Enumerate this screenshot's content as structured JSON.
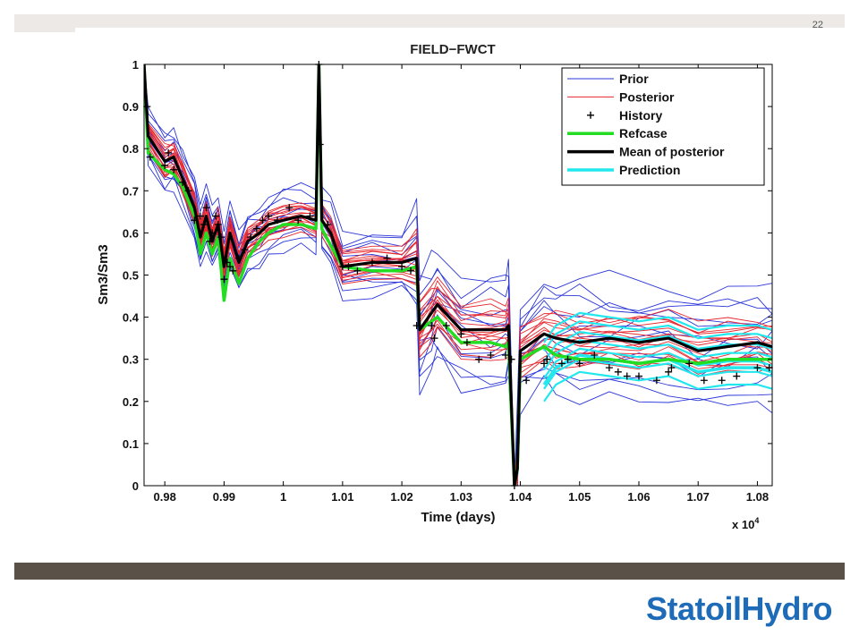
{
  "slide": {
    "page_number": "22",
    "logo_text": "StatoilHydro"
  },
  "colors": {
    "prior": "#2a35d8",
    "posterior": "#e8262e",
    "history": "#000000",
    "refcase": "#22dd22",
    "mean": "#000000",
    "prediction": "#22e8ee"
  },
  "chart_data": {
    "type": "line",
    "title": "FIELD−FWCT",
    "xlabel": "Time (days)",
    "ylabel": "Sm3/Sm3",
    "x_multiplier_label": "x 10",
    "x_multiplier_exp": "4",
    "xlim": [
      9765,
      10825
    ],
    "ylim": [
      0,
      1
    ],
    "xticks": [
      9800,
      9900,
      10000,
      10100,
      10200,
      10300,
      10400,
      10500,
      10600,
      10700,
      10800
    ],
    "xtick_labels": [
      "0.98",
      "0.99",
      "1",
      "1.01",
      "1.02",
      "1.03",
      "1.04",
      "1.05",
      "1.06",
      "1.07",
      "1.08"
    ],
    "yticks": [
      0,
      0.1,
      0.2,
      0.3,
      0.4,
      0.5,
      0.6,
      0.7,
      0.8,
      0.9,
      1
    ],
    "ytick_labels": [
      "0",
      "0.1",
      "0.2",
      "0.3",
      "0.4",
      "0.5",
      "0.6",
      "0.7",
      "0.8",
      "0.9",
      "1"
    ],
    "legend_position": "top-right",
    "legend": [
      "Prior",
      "Posterior",
      "History",
      "Refcase",
      "Mean of posterior",
      "Prediction"
    ],
    "grid": false,
    "base_x": [
      9765,
      9772,
      9800,
      9815,
      9830,
      9850,
      9860,
      9870,
      9880,
      9890,
      9900,
      9910,
      9925,
      9940,
      9960,
      9975,
      10000,
      10030,
      10055,
      10060,
      10065,
      10080,
      10100,
      10150,
      10200,
      10225,
      10230,
      10250,
      10260,
      10300,
      10350,
      10375,
      10380,
      10390,
      10395,
      10400,
      10440,
      10460,
      10500,
      10550,
      10600,
      10650,
      10700,
      10750,
      10800,
      10825
    ],
    "series": [
      {
        "name": "Mean of posterior",
        "style": "mean",
        "x": [
          9765,
          9772,
          9800,
          9815,
          9830,
          9850,
          9860,
          9870,
          9880,
          9890,
          9900,
          9910,
          9925,
          9940,
          9960,
          9975,
          10000,
          10030,
          10055,
          10060,
          10065,
          10080,
          10100,
          10150,
          10200,
          10225,
          10230,
          10250,
          10260,
          10300,
          10350,
          10375,
          10380,
          10390,
          10395,
          10400,
          10440,
          10460,
          10500,
          10550,
          10600,
          10650,
          10700,
          10750,
          10800,
          10825
        ],
        "y": [
          1.0,
          0.83,
          0.77,
          0.78,
          0.73,
          0.66,
          0.59,
          0.64,
          0.58,
          0.62,
          0.52,
          0.6,
          0.53,
          0.58,
          0.6,
          0.62,
          0.63,
          0.64,
          0.63,
          1.0,
          0.63,
          0.6,
          0.52,
          0.53,
          0.53,
          0.54,
          0.37,
          0.41,
          0.43,
          0.37,
          0.37,
          0.37,
          0.38,
          0.0,
          0.04,
          0.32,
          0.36,
          0.35,
          0.34,
          0.35,
          0.34,
          0.35,
          0.32,
          0.33,
          0.34,
          0.33
        ]
      },
      {
        "name": "Refcase",
        "style": "refcase",
        "x": [
          9765,
          9772,
          9800,
          9815,
          9830,
          9850,
          9860,
          9870,
          9880,
          9890,
          9900,
          9910,
          9925,
          9940,
          9960,
          9975,
          10000,
          10030,
          10055,
          10060,
          10065,
          10080,
          10100,
          10150,
          10200,
          10225,
          10230,
          10250,
          10260,
          10300,
          10350,
          10375,
          10380,
          10390,
          10395,
          10400,
          10440,
          10460,
          10500,
          10550,
          10600,
          10650,
          10700,
          10750,
          10800,
          10825
        ],
        "y": [
          1.0,
          0.79,
          0.75,
          0.74,
          0.71,
          0.64,
          0.55,
          0.6,
          0.55,
          0.59,
          0.44,
          0.54,
          0.48,
          0.54,
          0.58,
          0.6,
          0.62,
          0.62,
          0.61,
          1.0,
          0.61,
          0.57,
          0.52,
          0.51,
          0.51,
          0.52,
          0.37,
          0.39,
          0.4,
          0.34,
          0.34,
          0.33,
          0.34,
          0.0,
          0.04,
          0.3,
          0.33,
          0.31,
          0.3,
          0.3,
          0.29,
          0.3,
          0.29,
          0.3,
          0.3,
          0.3
        ]
      },
      {
        "name": "Prediction",
        "style": "prediction",
        "x": [
          10440,
          10460,
          10500,
          10550,
          10600,
          10650,
          10700,
          10750,
          10800,
          10825
        ],
        "y": [
          0.24,
          0.28,
          0.31,
          0.3,
          0.29,
          0.3,
          0.27,
          0.28,
          0.28,
          0.27
        ],
        "band_offsets": [
          -0.075,
          -0.045,
          -0.02,
          0.0,
          0.02,
          0.045,
          0.065
        ]
      },
      {
        "name": "History",
        "style": "history",
        "x": [
          9770,
          9775,
          9800,
          9806,
          9815,
          9830,
          9840,
          9850,
          9860,
          9866,
          9870,
          9876,
          9880,
          9886,
          9890,
          9895,
          9900,
          9905,
          9910,
          9915,
          9925,
          9935,
          9945,
          9955,
          9965,
          9975,
          9990,
          10010,
          10025,
          10045,
          10060,
          10062,
          10075,
          10100,
          10110,
          10125,
          10150,
          10175,
          10200,
          10215,
          10225,
          10250,
          10255,
          10275,
          10300,
          10310,
          10330,
          10350,
          10375,
          10385,
          10390,
          10410,
          10440,
          10445,
          10470,
          10480,
          10500,
          10525,
          10550,
          10565,
          10580,
          10600,
          10630,
          10650,
          10655,
          10685,
          10710,
          10740,
          10765,
          10800,
          10820
        ],
        "y": [
          0.9,
          0.78,
          0.76,
          0.79,
          0.75,
          0.72,
          0.7,
          0.63,
          0.64,
          0.62,
          0.66,
          0.58,
          0.6,
          0.64,
          0.62,
          0.59,
          0.49,
          0.53,
          0.52,
          0.51,
          0.54,
          0.56,
          0.59,
          0.61,
          0.63,
          0.64,
          0.63,
          0.66,
          0.63,
          0.64,
          1.0,
          0.81,
          0.62,
          0.52,
          0.52,
          0.51,
          0.53,
          0.54,
          0.52,
          0.51,
          0.38,
          0.38,
          0.35,
          0.38,
          0.36,
          0.34,
          0.3,
          0.31,
          0.31,
          0.3,
          0.0,
          0.25,
          0.29,
          0.3,
          0.29,
          0.3,
          0.29,
          0.31,
          0.28,
          0.27,
          0.26,
          0.26,
          0.25,
          0.27,
          0.28,
          0.29,
          0.25,
          0.25,
          0.26,
          0.28,
          0.28
        ]
      }
    ]
  }
}
